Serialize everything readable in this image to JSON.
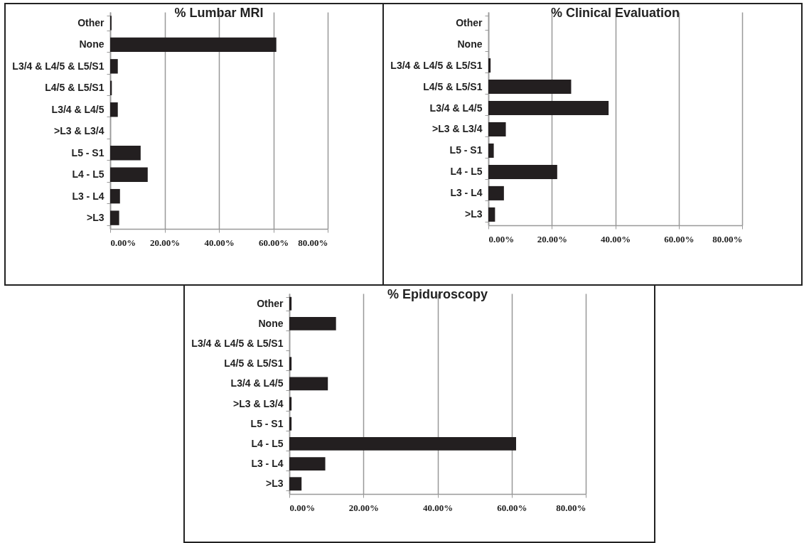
{
  "chart_data": [
    {
      "type": "bar",
      "orientation": "horizontal",
      "title": "% Lumbar MRI",
      "categories": [
        "Other",
        "None",
        "L3/4 & L4/5 & L5/S1",
        "L4/5 & L5/S1",
        "L3/4 & L4/5",
        ">L3 & L3/4",
        "L5 - S1",
        "L4 - L5",
        "L3 - L4",
        ">L3"
      ],
      "values": [
        0.5,
        61.1,
        2.8,
        0.6,
        2.8,
        0,
        11.2,
        13.8,
        3.6,
        3.3
      ],
      "color": "#231f20",
      "xlim": [
        0,
        80
      ],
      "xticks": [
        {
          "value": 0,
          "label": "0.00%"
        },
        {
          "value": 20,
          "label": "20.00%"
        },
        {
          "value": 40,
          "label": "40.00%"
        },
        {
          "value": 60,
          "label": "60.00%"
        },
        {
          "value": 80,
          "label": "80.00%"
        }
      ],
      "grid": "x"
    },
    {
      "type": "bar",
      "orientation": "horizontal",
      "title": "% Clinical Evaluation",
      "categories": [
        "Other",
        "None",
        "L3/4 & L4/5 & L5/S1",
        "L4/5 & L5/S1",
        "L3/4 & L4/5",
        ">L3 & L3/4",
        "L5 - S1",
        "L4 - L5",
        "L3 - L4",
        ">L3"
      ],
      "values": [
        0,
        0,
        0.7,
        26.1,
        37.9,
        5.5,
        1.7,
        21.7,
        4.9,
        2.1
      ],
      "color": "#231f20",
      "xlim": [
        0,
        80
      ],
      "xticks": [
        {
          "value": 0,
          "label": "0.00%"
        },
        {
          "value": 20,
          "label": "20.00%"
        },
        {
          "value": 40,
          "label": "40.00%"
        },
        {
          "value": 60,
          "label": "60.00%"
        },
        {
          "value": 80,
          "label": "80.00%"
        }
      ],
      "grid": "x"
    },
    {
      "type": "bar",
      "orientation": "horizontal",
      "title": "% Epiduroscopy",
      "categories": [
        "Other",
        "None",
        "L3/4 & L4/5 & L5/S1",
        "L4/5 & L5/S1",
        "L3/4 & L4/5",
        ">L3 & L3/4",
        "L5 - S1",
        "L4 - L5",
        "L3 - L4",
        ">L3"
      ],
      "values": [
        0.6,
        12.6,
        0,
        0.6,
        10.4,
        0.6,
        0.6,
        61.2,
        9.7,
        3.3
      ],
      "color": "#231f20",
      "xlim": [
        0,
        80
      ],
      "xticks": [
        {
          "value": 0,
          "label": "0.00%"
        },
        {
          "value": 20,
          "label": "20.00%"
        },
        {
          "value": 40,
          "label": "40.00%"
        },
        {
          "value": 60,
          "label": "60.00%"
        },
        {
          "value": 80,
          "label": "80.00%"
        }
      ],
      "grid": "x"
    }
  ]
}
